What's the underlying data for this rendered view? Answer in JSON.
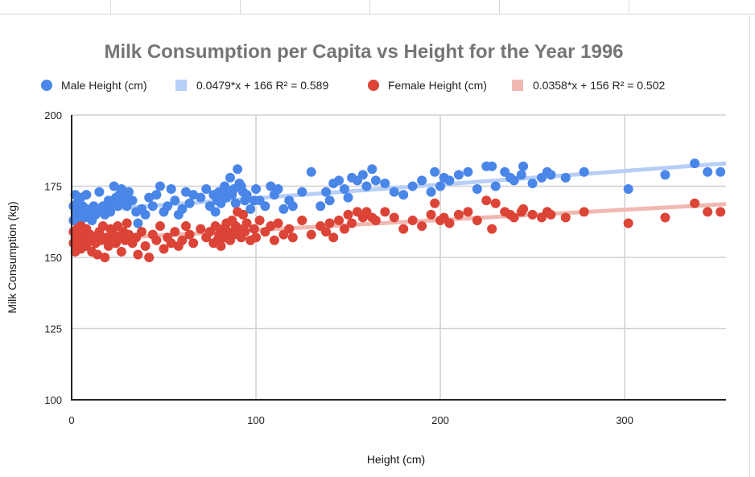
{
  "chart_data": {
    "type": "scatter",
    "title": "Milk Consumption per Capita vs Height for the Year 1996",
    "xlabel": "Height (cm)",
    "ylabel": "Milk Consumption (kg)",
    "xlim": [
      0,
      355
    ],
    "ylim": [
      100,
      200
    ],
    "xticks": [
      "0",
      "100",
      "200",
      "300"
    ],
    "yticks": [
      "100",
      "125",
      "150",
      "175",
      "200"
    ],
    "grid": true,
    "legend_position": "top",
    "legend": [
      {
        "label": "Male Height (cm)",
        "marker": "dot",
        "color": "#4a86e8"
      },
      {
        "label": "0.0479*x + 166 R² = 0.589",
        "marker": "square",
        "color": "#b7cff7"
      },
      {
        "label": "Female Height (cm)",
        "marker": "dot",
        "color": "#db4437"
      },
      {
        "label": "0.0358*x + 156 R² = 0.502",
        "marker": "square",
        "color": "#f1b8b2"
      }
    ],
    "series": [
      {
        "name": "Male Height (cm)",
        "color": "#4a86e8",
        "points": [
          [
            1,
            163
          ],
          [
            1,
            168
          ],
          [
            2,
            166
          ],
          [
            2,
            172
          ],
          [
            3,
            164
          ],
          [
            3,
            169
          ],
          [
            4,
            167
          ],
          [
            4,
            165
          ],
          [
            5,
            171
          ],
          [
            5,
            163
          ],
          [
            6,
            168
          ],
          [
            6,
            166
          ],
          [
            7,
            164
          ],
          [
            8,
            167
          ],
          [
            8,
            172
          ],
          [
            9,
            165
          ],
          [
            10,
            166
          ],
          [
            11,
            163
          ],
          [
            12,
            168
          ],
          [
            13,
            165
          ],
          [
            14,
            167
          ],
          [
            15,
            173
          ],
          [
            16,
            166
          ],
          [
            17,
            168
          ],
          [
            18,
            165
          ],
          [
            19,
            167
          ],
          [
            20,
            170
          ],
          [
            21,
            166
          ],
          [
            22,
            168
          ],
          [
            23,
            175
          ],
          [
            24,
            171
          ],
          [
            25,
            168
          ],
          [
            26,
            172
          ],
          [
            27,
            174
          ],
          [
            28,
            169
          ],
          [
            29,
            171
          ],
          [
            30,
            168
          ],
          [
            31,
            173
          ],
          [
            33,
            170
          ],
          [
            35,
            166
          ],
          [
            36,
            162
          ],
          [
            38,
            167
          ],
          [
            40,
            165
          ],
          [
            42,
            171
          ],
          [
            44,
            168
          ],
          [
            46,
            172
          ],
          [
            48,
            175
          ],
          [
            50,
            166
          ],
          [
            52,
            168
          ],
          [
            54,
            174
          ],
          [
            56,
            170
          ],
          [
            58,
            165
          ],
          [
            60,
            167
          ],
          [
            62,
            173
          ],
          [
            64,
            169
          ],
          [
            66,
            172
          ],
          [
            70,
            171
          ],
          [
            73,
            174
          ],
          [
            75,
            168
          ],
          [
            77,
            172
          ],
          [
            78,
            166
          ],
          [
            79,
            170
          ],
          [
            80,
            173
          ],
          [
            81,
            169
          ],
          [
            82,
            172
          ],
          [
            83,
            175
          ],
          [
            84,
            171
          ],
          [
            85,
            173
          ],
          [
            86,
            178
          ],
          [
            87,
            172
          ],
          [
            88,
            174
          ],
          [
            89,
            169
          ],
          [
            90,
            181
          ],
          [
            91,
            176
          ],
          [
            92,
            175
          ],
          [
            93,
            173
          ],
          [
            94,
            170
          ],
          [
            95,
            172
          ],
          [
            97,
            167
          ],
          [
            99,
            170
          ],
          [
            100,
            174
          ],
          [
            102,
            170
          ],
          [
            105,
            168
          ],
          [
            108,
            175
          ],
          [
            110,
            172
          ],
          [
            112,
            174
          ],
          [
            115,
            167
          ],
          [
            118,
            170
          ],
          [
            120,
            168
          ],
          [
            125,
            173
          ],
          [
            130,
            180
          ],
          [
            135,
            168
          ],
          [
            138,
            173
          ],
          [
            140,
            170
          ],
          [
            142,
            176
          ],
          [
            145,
            177
          ],
          [
            148,
            174
          ],
          [
            150,
            171
          ],
          [
            152,
            178
          ],
          [
            155,
            177
          ],
          [
            158,
            179
          ],
          [
            160,
            175
          ],
          [
            163,
            181
          ],
          [
            165,
            177
          ],
          [
            170,
            176
          ],
          [
            175,
            173
          ],
          [
            180,
            172
          ],
          [
            185,
            175
          ],
          [
            190,
            177
          ],
          [
            195,
            173
          ],
          [
            197,
            180
          ],
          [
            200,
            175
          ],
          [
            202,
            178
          ],
          [
            205,
            177
          ],
          [
            210,
            179
          ],
          [
            215,
            180
          ],
          [
            220,
            174
          ],
          [
            225,
            182
          ],
          [
            228,
            182
          ],
          [
            230,
            175
          ],
          [
            235,
            180
          ],
          [
            238,
            178
          ],
          [
            240,
            177
          ],
          [
            244,
            179
          ],
          [
            245,
            182
          ],
          [
            250,
            176
          ],
          [
            255,
            178
          ],
          [
            258,
            180
          ],
          [
            260,
            179
          ],
          [
            268,
            178
          ],
          [
            278,
            180
          ],
          [
            302,
            174
          ],
          [
            322,
            179
          ],
          [
            338,
            183
          ],
          [
            345,
            180
          ],
          [
            352,
            180
          ]
        ]
      },
      {
        "name": "Female Height (cm)",
        "color": "#db4437",
        "points": [
          [
            1,
            155
          ],
          [
            1,
            159
          ],
          [
            2,
            152
          ],
          [
            2,
            157
          ],
          [
            3,
            160
          ],
          [
            3,
            154
          ],
          [
            4,
            158
          ],
          [
            4,
            156
          ],
          [
            5,
            161
          ],
          [
            5,
            153
          ],
          [
            6,
            157
          ],
          [
            6,
            155
          ],
          [
            7,
            159
          ],
          [
            8,
            154
          ],
          [
            8,
            160
          ],
          [
            9,
            156
          ],
          [
            10,
            158
          ],
          [
            11,
            152
          ],
          [
            12,
            157
          ],
          [
            13,
            155
          ],
          [
            14,
            151
          ],
          [
            15,
            159
          ],
          [
            16,
            156
          ],
          [
            17,
            161
          ],
          [
            18,
            150
          ],
          [
            19,
            157
          ],
          [
            20,
            154
          ],
          [
            21,
            160
          ],
          [
            22,
            156
          ],
          [
            23,
            158
          ],
          [
            24,
            155
          ],
          [
            25,
            161
          ],
          [
            26,
            157
          ],
          [
            27,
            152
          ],
          [
            28,
            159
          ],
          [
            29,
            156
          ],
          [
            30,
            162
          ],
          [
            31,
            158
          ],
          [
            33,
            155
          ],
          [
            35,
            157
          ],
          [
            36,
            151
          ],
          [
            38,
            159
          ],
          [
            40,
            154
          ],
          [
            42,
            150
          ],
          [
            44,
            158
          ],
          [
            46,
            156
          ],
          [
            48,
            161
          ],
          [
            50,
            153
          ],
          [
            52,
            157
          ],
          [
            54,
            155
          ],
          [
            56,
            159
          ],
          [
            58,
            154
          ],
          [
            60,
            156
          ],
          [
            62,
            161
          ],
          [
            64,
            158
          ],
          [
            66,
            155
          ],
          [
            70,
            160
          ],
          [
            73,
            157
          ],
          [
            75,
            159
          ],
          [
            77,
            155
          ],
          [
            78,
            161
          ],
          [
            79,
            156
          ],
          [
            80,
            158
          ],
          [
            81,
            154
          ],
          [
            82,
            160
          ],
          [
            83,
            157
          ],
          [
            84,
            162
          ],
          [
            85,
            159
          ],
          [
            86,
            156
          ],
          [
            87,
            163
          ],
          [
            88,
            158
          ],
          [
            89,
            161
          ],
          [
            90,
            166
          ],
          [
            91,
            160
          ],
          [
            92,
            157
          ],
          [
            93,
            165
          ],
          [
            94,
            159
          ],
          [
            95,
            162
          ],
          [
            97,
            156
          ],
          [
            99,
            160
          ],
          [
            100,
            157
          ],
          [
            102,
            163
          ],
          [
            105,
            159
          ],
          [
            108,
            161
          ],
          [
            110,
            156
          ],
          [
            112,
            162
          ],
          [
            115,
            158
          ],
          [
            118,
            160
          ],
          [
            120,
            157
          ],
          [
            125,
            163
          ],
          [
            130,
            158
          ],
          [
            135,
            161
          ],
          [
            138,
            159
          ],
          [
            140,
            162
          ],
          [
            142,
            157
          ],
          [
            145,
            163
          ],
          [
            148,
            160
          ],
          [
            150,
            165
          ],
          [
            152,
            162
          ],
          [
            155,
            166
          ],
          [
            158,
            164
          ],
          [
            160,
            166
          ],
          [
            163,
            164
          ],
          [
            165,
            163
          ],
          [
            170,
            166
          ],
          [
            175,
            164
          ],
          [
            180,
            160
          ],
          [
            185,
            163
          ],
          [
            190,
            161
          ],
          [
            195,
            165
          ],
          [
            197,
            169
          ],
          [
            200,
            163
          ],
          [
            202,
            164
          ],
          [
            205,
            162
          ],
          [
            210,
            165
          ],
          [
            215,
            166
          ],
          [
            220,
            163
          ],
          [
            225,
            170
          ],
          [
            228,
            160
          ],
          [
            230,
            169
          ],
          [
            235,
            166
          ],
          [
            238,
            165
          ],
          [
            240,
            164
          ],
          [
            244,
            166
          ],
          [
            245,
            167
          ],
          [
            250,
            165
          ],
          [
            255,
            164
          ],
          [
            258,
            166
          ],
          [
            260,
            165
          ],
          [
            268,
            164
          ],
          [
            278,
            166
          ],
          [
            302,
            162
          ],
          [
            322,
            164
          ],
          [
            338,
            169
          ],
          [
            345,
            166
          ],
          [
            352,
            166
          ]
        ]
      }
    ],
    "trendlines": [
      {
        "slope": 0.0479,
        "intercept": 166,
        "color": "#b7cff7"
      },
      {
        "slope": 0.0358,
        "intercept": 156,
        "color": "#f1b8b2"
      }
    ]
  }
}
